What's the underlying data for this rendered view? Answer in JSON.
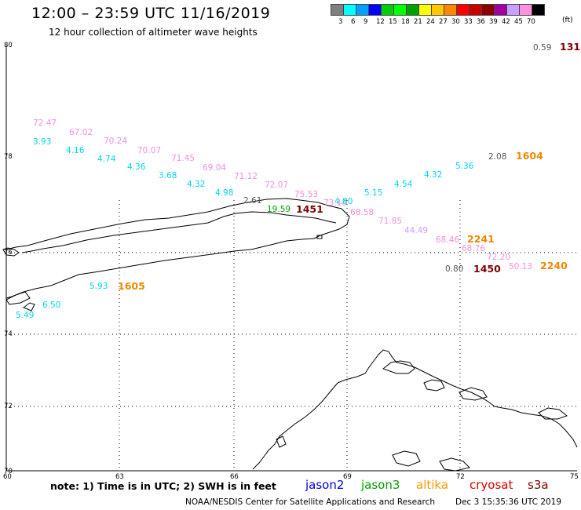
{
  "title": "12:00 – 23:59 UTC 11/16/2019",
  "subtitle": "12 hour collection of altimeter wave heights",
  "color_scale": {
    "unit": "(ft)",
    "cells": [
      {
        "label": "3",
        "color": "#7f7f7f"
      },
      {
        "label": "6",
        "color": "#00ffff"
      },
      {
        "label": "9",
        "color": "#00a0ff"
      },
      {
        "label": "12",
        "color": "#0000ff"
      },
      {
        "label": "15",
        "color": "#00d000"
      },
      {
        "label": "18",
        "color": "#00ff00"
      },
      {
        "label": "21",
        "color": "#00a000"
      },
      {
        "label": "24",
        "color": "#ffff00"
      },
      {
        "label": "27",
        "color": "#ffc800"
      },
      {
        "label": "30",
        "color": "#ff8800"
      },
      {
        "label": "33",
        "color": "#ff0000"
      },
      {
        "label": "36",
        "color": "#c80000"
      },
      {
        "label": "39",
        "color": "#8b0000"
      },
      {
        "label": "42",
        "color": "#a000a0"
      },
      {
        "label": "45",
        "color": "#c8a0ff"
      },
      {
        "label": "70",
        "color": "#ff90e0"
      },
      {
        "label": "",
        "color": "#000000"
      }
    ]
  },
  "axes": {
    "lat_labels": [
      "80",
      "78",
      "76",
      "74",
      "72",
      "70"
    ],
    "lon_labels": [
      "60",
      "63",
      "66",
      "69",
      "72",
      "75"
    ]
  },
  "wave_heights": [
    {
      "text": "72.47",
      "color": "#ee90dd"
    },
    {
      "text": "67.02",
      "color": "#ee90dd"
    },
    {
      "text": "70.24",
      "color": "#ee90dd"
    },
    {
      "text": "70.07",
      "color": "#ee90dd"
    },
    {
      "text": "71.45",
      "color": "#ee90dd"
    },
    {
      "text": "69.04",
      "color": "#ee90dd"
    },
    {
      "text": "71.12",
      "color": "#ee90dd"
    },
    {
      "text": "72.07",
      "color": "#ee90dd"
    },
    {
      "text": "75.53",
      "color": "#ee90dd"
    },
    {
      "text": "73.18",
      "color": "#ee90dd"
    },
    {
      "text": "68.58",
      "color": "#ee90dd"
    },
    {
      "text": "71.85",
      "color": "#ee90dd"
    },
    {
      "text": "44.49",
      "color": "#c8a0f0"
    },
    {
      "text": "68.46",
      "color": "#ee90dd"
    },
    {
      "text": "68.76",
      "color": "#ee90dd"
    },
    {
      "text": "72.20",
      "color": "#ee90dd"
    },
    {
      "text": "50.13",
      "color": "#ee90dd"
    },
    {
      "text": "3.93",
      "color": "#00d8e8"
    },
    {
      "text": "4.16",
      "color": "#00d8e8"
    },
    {
      "text": "4.74",
      "color": "#00d8e8"
    },
    {
      "text": "4.36",
      "color": "#00d8e8"
    },
    {
      "text": "3.68",
      "color": "#00d8e8"
    },
    {
      "text": "4.32",
      "color": "#00d8e8"
    },
    {
      "text": "4.98",
      "color": "#00d8e8"
    },
    {
      "text": "4.80",
      "color": "#00d8e8"
    },
    {
      "text": "5.15",
      "color": "#00d8e8"
    },
    {
      "text": "4.54",
      "color": "#00d8e8"
    },
    {
      "text": "4.32",
      "color": "#00d8e8"
    },
    {
      "text": "5.36",
      "color": "#00d8e8"
    },
    {
      "text": "5.93",
      "color": "#00d8e8"
    },
    {
      "text": "6.50",
      "color": "#00d8e8"
    },
    {
      "text": "5.49",
      "color": "#00d8e8"
    },
    {
      "text": "2.61",
      "color": "#555555"
    },
    {
      "text": "2.08",
      "color": "#555555"
    },
    {
      "text": "0.59",
      "color": "#555555"
    },
    {
      "text": "0.80",
      "color": "#555555"
    },
    {
      "text": "19.59",
      "color": "#00a000"
    }
  ],
  "pass_times": [
    {
      "text": "1451",
      "color": "#800000"
    },
    {
      "text": "1604",
      "color": "#ee8800"
    },
    {
      "text": "2241",
      "color": "#ee8800"
    },
    {
      "text": "1450",
      "color": "#800000"
    },
    {
      "text": "2240",
      "color": "#ee8800"
    },
    {
      "text": "1605",
      "color": "#ee8800"
    },
    {
      "text": "131",
      "color": "#800000"
    }
  ],
  "note": "note:  1) Time is in UTC;  2) SWH is in feet",
  "legend": [
    {
      "text": "jason2",
      "color": "#0000dd"
    },
    {
      "text": "jason3",
      "color": "#00a000"
    },
    {
      "text": "altika",
      "color": "#ff9900"
    },
    {
      "text": "cryosat",
      "color": "#dd0000"
    },
    {
      "text": "s3a",
      "color": "#800000"
    }
  ],
  "footer": {
    "agency": "NOAA/NESDIS Center for Satellite Applications and Research",
    "date": "Dec  3 15:35:36 UTC 2019"
  }
}
